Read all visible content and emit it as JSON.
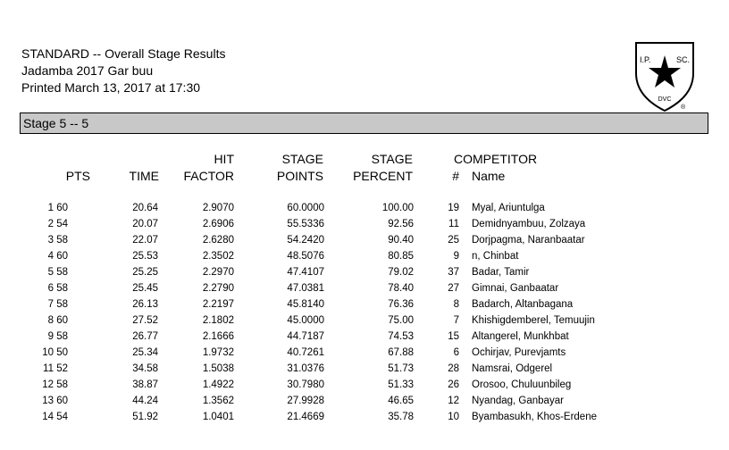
{
  "header": {
    "title": "STANDARD -- Overall Stage Results",
    "match": "Jadamba 2017 Gar buu",
    "printed": "Printed March 13, 2017 at 17:30"
  },
  "logo": {
    "left": "I.P.",
    "right": "SC.",
    "motto": "DVC",
    "mark": "®"
  },
  "stage": "Stage 5 -- 5",
  "table": {
    "competitor_label": "COMPETITOR",
    "columns": [
      {
        "lines": [
          "PTS"
        ]
      },
      {
        "lines": [
          "TIME"
        ]
      },
      {
        "lines": [
          "HIT",
          "FACTOR"
        ]
      },
      {
        "lines": [
          "STAGE",
          "POINTS"
        ]
      },
      {
        "lines": [
          "STAGE",
          "PERCENT"
        ]
      },
      {
        "lines": [
          "#"
        ]
      },
      {
        "lines": [
          "Name"
        ]
      }
    ],
    "rows": [
      [
        "1",
        "60",
        "20.64",
        "2.9070",
        "60.0000",
        "100.00",
        "19",
        "Myal, Ariuntulga"
      ],
      [
        "2",
        "54",
        "20.07",
        "2.6906",
        "55.5336",
        "92.56",
        "11",
        "Demidnyambuu, Zolzaya"
      ],
      [
        "3",
        "58",
        "22.07",
        "2.6280",
        "54.2420",
        "90.40",
        "25",
        "Dorjpagma, Naranbaatar"
      ],
      [
        "4",
        "60",
        "25.53",
        "2.3502",
        "48.5076",
        "80.85",
        "9",
        "n, Chinbat"
      ],
      [
        "5",
        "58",
        "25.25",
        "2.2970",
        "47.4107",
        "79.02",
        "37",
        "Badar, Tamir"
      ],
      [
        "6",
        "58",
        "25.45",
        "2.2790",
        "47.0381",
        "78.40",
        "27",
        "Gimnai, Ganbaatar"
      ],
      [
        "7",
        "58",
        "26.13",
        "2.2197",
        "45.8140",
        "76.36",
        "8",
        "Badarch, Altanbagana"
      ],
      [
        "8",
        "60",
        "27.52",
        "2.1802",
        "45.0000",
        "75.00",
        "7",
        "Khishigdemberel, Temuujin"
      ],
      [
        "9",
        "58",
        "26.77",
        "2.1666",
        "44.7187",
        "74.53",
        "15",
        "Altangerel, Munkhbat"
      ],
      [
        "10",
        "50",
        "25.34",
        "1.9732",
        "40.7261",
        "67.88",
        "6",
        "Ochirjav, Purevjamts"
      ],
      [
        "11",
        "52",
        "34.58",
        "1.5038",
        "31.0376",
        "51.73",
        "28",
        "Namsrai, Odgerel"
      ],
      [
        "12",
        "58",
        "38.87",
        "1.4922",
        "30.7980",
        "51.33",
        "26",
        "Orosoo, Chuluunbileg"
      ],
      [
        "13",
        "60",
        "44.24",
        "1.3562",
        "27.9928",
        "46.65",
        "12",
        "Nyandag, Ganbayar"
      ],
      [
        "14",
        "54",
        "51.92",
        "1.0401",
        "21.4669",
        "35.78",
        "10",
        "Byambasukh, Khos-Erdene"
      ]
    ]
  }
}
